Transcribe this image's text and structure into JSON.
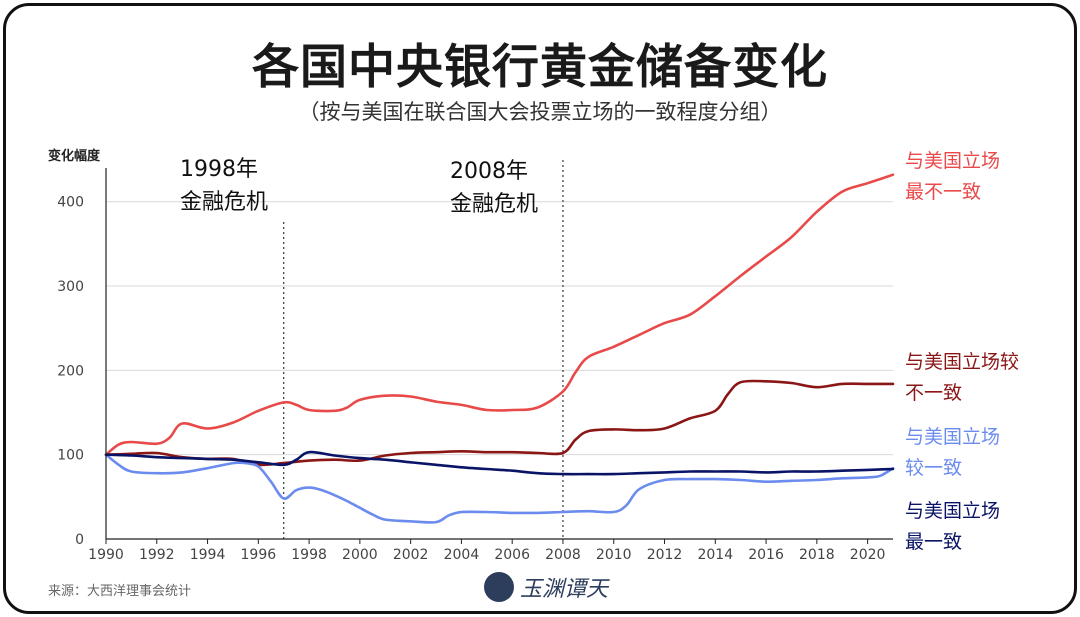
{
  "header": {
    "title": "各国中央银行黄金储备变化",
    "subtitle": "（按与美国在联合国大会投票立场的一致程度分组）"
  },
  "footer": {
    "source": "来源：大西洋理事会统计",
    "logo_text": "玉渊谭天",
    "logo_icon": "wave-logo-icon"
  },
  "annotations": [
    {
      "line1": "1998年",
      "line2": "金融危机",
      "x": 1997
    },
    {
      "line1": "2008年",
      "line2": "金融危机",
      "x": 2008
    }
  ],
  "labels": {
    "s1": [
      "与美国立场",
      "最不一致"
    ],
    "s2": [
      "与美国立场较",
      "不一致"
    ],
    "s3": [
      "与美国立场",
      "较一致"
    ],
    "s4": [
      "与美国立场",
      "最一致"
    ]
  },
  "chart_data": {
    "type": "line",
    "ylabel": "变化幅度",
    "xlim": [
      1990,
      2021
    ],
    "ylim": [
      0,
      440
    ],
    "xticks": [
      "1990",
      "1992",
      "1994",
      "1996",
      "1998",
      "2000",
      "2002",
      "2004",
      "2006",
      "2008",
      "2010",
      "2012",
      "2014",
      "2016",
      "2018",
      "2020"
    ],
    "yticks": [
      "0",
      "100",
      "200",
      "300",
      "400"
    ],
    "grid": true,
    "series": [
      {
        "name": "与美国立场最不一致",
        "color": "#e84a4a",
        "x": [
          1990,
          1990.5,
          1991,
          1992,
          1992.5,
          1993,
          1994,
          1995,
          1996,
          1997,
          1997.5,
          1998,
          1999,
          1999.5,
          2000,
          2001,
          2002,
          2003,
          2004,
          2005,
          2006,
          2007,
          2008,
          2008.5,
          2009,
          2010,
          2011,
          2012,
          2013,
          2014,
          2015,
          2016,
          2017,
          2018,
          2019,
          2020,
          2021
        ],
        "y": [
          100,
          112,
          115,
          113,
          120,
          137,
          131,
          138,
          152,
          162,
          159,
          153,
          152,
          156,
          165,
          170,
          169,
          163,
          159,
          153,
          153,
          156,
          175,
          198,
          216,
          228,
          242,
          256,
          266,
          288,
          312,
          335,
          358,
          388,
          412,
          422,
          432
        ]
      },
      {
        "name": "与美国立场较不一致",
        "color": "#8b1616",
        "x": [
          1990,
          1991,
          1992,
          1993,
          1994,
          1995,
          1996,
          1997,
          1998,
          1999,
          2000,
          2001,
          2002,
          2003,
          2004,
          2005,
          2006,
          2007,
          2008,
          2008.5,
          2009,
          2010,
          2011,
          2012,
          2013,
          2014,
          2014.5,
          2015,
          2016,
          2017,
          2018,
          2019,
          2020,
          2021
        ],
        "y": [
          100,
          101,
          102,
          97,
          95,
          95,
          88,
          90,
          93,
          94,
          93,
          99,
          102,
          103,
          104,
          103,
          103,
          102,
          102,
          118,
          128,
          130,
          129,
          131,
          143,
          152,
          172,
          186,
          187,
          185,
          180,
          184,
          184,
          184
        ]
      },
      {
        "name": "与美国立场较一致",
        "color": "#6b8cee",
        "x": [
          1990,
          1990.5,
          1991,
          1992,
          1993,
          1994,
          1995,
          1995.5,
          1996,
          1996.5,
          1997,
          1997.5,
          1998,
          1998.5,
          1999,
          1999.5,
          2000,
          2000.5,
          2001,
          2002,
          2003,
          2003.5,
          2004,
          2005,
          2006,
          2007,
          2008,
          2009,
          2010,
          2010.5,
          2011,
          2012,
          2013,
          2014,
          2015,
          2016,
          2017,
          2018,
          2019,
          2020,
          2020.5,
          2021
        ],
        "y": [
          100,
          88,
          80,
          78,
          79,
          84,
          90,
          90,
          86,
          68,
          48,
          58,
          61,
          58,
          52,
          45,
          37,
          29,
          23,
          21,
          20,
          28,
          32,
          32,
          31,
          31,
          32,
          33,
          32,
          40,
          59,
          70,
          71,
          71,
          70,
          68,
          69,
          70,
          72,
          73,
          75,
          84
        ]
      },
      {
        "name": "与美国立场最一致",
        "color": "#0a1466",
        "x": [
          1990,
          1991,
          1992,
          1993,
          1994,
          1995,
          1996,
          1997,
          1997.5,
          1998,
          1999,
          2000,
          2001,
          2002,
          2003,
          2004,
          2005,
          2006,
          2007,
          2008,
          2009,
          2010,
          2011,
          2012,
          2013,
          2014,
          2015,
          2016,
          2017,
          2018,
          2019,
          2020,
          2021
        ],
        "y": [
          100,
          99,
          97,
          96,
          95,
          94,
          91,
          88,
          94,
          103,
          99,
          96,
          94,
          91,
          88,
          85,
          83,
          81,
          78,
          77,
          77,
          77,
          78,
          79,
          80,
          80,
          80,
          79,
          80,
          80,
          81,
          82,
          83
        ]
      }
    ]
  }
}
